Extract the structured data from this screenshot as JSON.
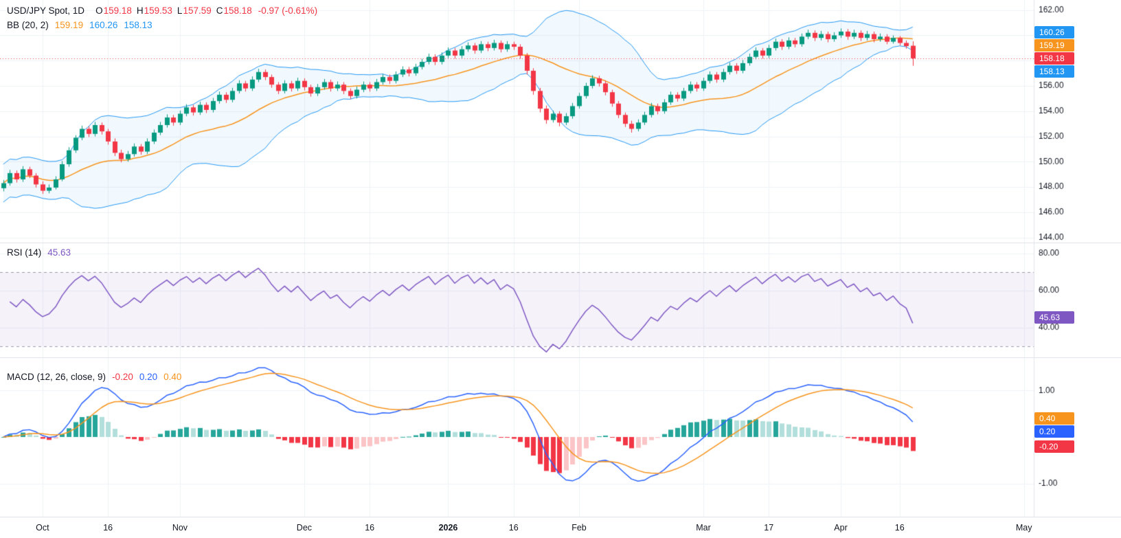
{
  "chart_data": {
    "type": "candlestick",
    "title": "USD/JPY Spot, 1D",
    "slots": 158,
    "x_labels": [
      {
        "text": "Oct",
        "slot": 6
      },
      {
        "text": "16",
        "slot": 16
      },
      {
        "text": "Nov",
        "slot": 27
      },
      {
        "text": "Dec",
        "slot": 46
      },
      {
        "text": "16",
        "slot": 56
      },
      {
        "text": "2026",
        "slot": 68,
        "bold": true
      },
      {
        "text": "16",
        "slot": 78
      },
      {
        "text": "Feb",
        "slot": 88
      },
      {
        "text": "Mar",
        "slot": 107
      },
      {
        "text": "17",
        "slot": 117
      },
      {
        "text": "Apr",
        "slot": 128
      },
      {
        "text": "16",
        "slot": 137
      },
      {
        "text": "May",
        "slot": 156
      }
    ],
    "colors": {
      "up": "#089981",
      "down": "#F23645",
      "bb": "#2196F3",
      "bb_fill": "rgba(33,150,243,0.06)",
      "basis": "#F7941D",
      "rsi": "#7E57C2",
      "rsi_fill": "rgba(126,87,194,0.08)",
      "rsi_dash": "#9B9EA8",
      "macd": "#2962FF",
      "signal": "#F7941D",
      "hist_up": "#26A69A",
      "hist_up_light": "#B2DFDB",
      "hist_down": "#F23645",
      "hist_down_light": "#FBC4C6",
      "grid": "#EEF2F6",
      "axis_text": "#131722",
      "separator": "#E0E3EB"
    },
    "panels": [
      {
        "name": "price",
        "type": "candlestick",
        "legend": {
          "title": "USD/JPY Spot, 1D",
          "ohlc": [
            {
              "k": "O",
              "v": "159.18"
            },
            {
              "k": "H",
              "v": "159.53"
            },
            {
              "k": "L",
              "v": "157.59"
            },
            {
              "k": "C",
              "v": "158.18"
            }
          ],
          "change": "-0.97 (-0.61%)",
          "bb_label": "BB (20, 2)",
          "bb": [
            "159.19",
            "160.26",
            "158.13"
          ]
        },
        "indicator": {
          "name": "Bollinger Bands",
          "period": 20,
          "stddev": 2
        },
        "ylim": [
          143.6,
          162.8
        ],
        "yticks": [
          162,
          160,
          158,
          156,
          154,
          152,
          150,
          148,
          146,
          144
        ],
        "last_price": 158.18,
        "axis_badges": [
          {
            "text": "160.26",
            "value": 160.26,
            "color": "#2196F3"
          },
          {
            "text": "159.19",
            "value": 159.19,
            "color": "#F7941D"
          },
          {
            "text": "158.18",
            "value": 158.18,
            "color": "#F23645"
          },
          {
            "text": "158.13",
            "value": 158.13,
            "color": "#2196F3"
          }
        ],
        "ohlc": [
          [
            147.9,
            148.55,
            147.65,
            148.3
          ],
          [
            148.3,
            149.35,
            148.1,
            149.1
          ],
          [
            149.1,
            149.3,
            148.35,
            148.6
          ],
          [
            148.6,
            149.65,
            148.4,
            149.4
          ],
          [
            149.4,
            149.6,
            148.7,
            148.9
          ],
          [
            148.9,
            149.1,
            147.95,
            148.2
          ],
          [
            148.2,
            148.45,
            147.45,
            147.7
          ],
          [
            147.7,
            148.2,
            147.5,
            147.95
          ],
          [
            147.95,
            148.85,
            147.8,
            148.6
          ],
          [
            148.6,
            150.05,
            148.45,
            149.8
          ],
          [
            149.8,
            151.15,
            149.6,
            150.9
          ],
          [
            150.9,
            152.1,
            150.7,
            151.9
          ],
          [
            151.9,
            152.85,
            151.7,
            152.6
          ],
          [
            152.6,
            152.8,
            151.95,
            152.2
          ],
          [
            152.2,
            153.15,
            152.0,
            152.9
          ],
          [
            152.9,
            153.1,
            152.15,
            152.4
          ],
          [
            152.4,
            152.6,
            151.35,
            151.6
          ],
          [
            151.6,
            151.85,
            150.45,
            150.7
          ],
          [
            150.7,
            150.95,
            149.95,
            150.2
          ],
          [
            150.2,
            150.85,
            150.0,
            150.6
          ],
          [
            150.6,
            151.45,
            150.4,
            151.2
          ],
          [
            151.2,
            151.4,
            150.55,
            150.8
          ],
          [
            150.8,
            151.85,
            150.6,
            151.6
          ],
          [
            151.6,
            152.55,
            151.4,
            152.3
          ],
          [
            152.3,
            153.15,
            152.1,
            152.9
          ],
          [
            152.9,
            153.75,
            152.7,
            153.5
          ],
          [
            153.5,
            153.7,
            152.85,
            153.1
          ],
          [
            153.1,
            154.05,
            152.9,
            153.8
          ],
          [
            153.8,
            154.55,
            153.6,
            154.3
          ],
          [
            154.3,
            154.5,
            153.65,
            153.9
          ],
          [
            153.9,
            154.75,
            153.7,
            154.5
          ],
          [
            154.5,
            154.7,
            153.85,
            154.1
          ],
          [
            154.1,
            155.05,
            153.9,
            154.8
          ],
          [
            154.8,
            155.55,
            154.6,
            155.3
          ],
          [
            155.3,
            155.5,
            154.65,
            154.9
          ],
          [
            154.9,
            155.85,
            154.7,
            155.6
          ],
          [
            155.6,
            156.45,
            155.4,
            156.2
          ],
          [
            156.2,
            156.4,
            155.55,
            155.8
          ],
          [
            155.8,
            156.75,
            155.6,
            156.5
          ],
          [
            156.5,
            157.35,
            156.3,
            157.1
          ],
          [
            157.1,
            157.3,
            156.45,
            156.7
          ],
          [
            156.7,
            156.9,
            155.85,
            156.1
          ],
          [
            156.1,
            156.3,
            155.35,
            155.6
          ],
          [
            155.6,
            156.45,
            155.4,
            156.2
          ],
          [
            156.2,
            156.4,
            155.55,
            155.8
          ],
          [
            155.8,
            156.65,
            155.6,
            156.4
          ],
          [
            156.4,
            156.6,
            155.65,
            155.9
          ],
          [
            155.9,
            156.1,
            155.15,
            155.4
          ],
          [
            155.4,
            156.15,
            155.2,
            155.9
          ],
          [
            155.9,
            156.55,
            155.7,
            156.3
          ],
          [
            156.3,
            156.5,
            155.55,
            155.8
          ],
          [
            155.8,
            156.35,
            155.6,
            156.1
          ],
          [
            156.1,
            156.3,
            155.35,
            155.6
          ],
          [
            155.6,
            155.8,
            154.95,
            155.2
          ],
          [
            155.2,
            155.95,
            155.0,
            155.7
          ],
          [
            155.7,
            156.35,
            155.5,
            156.1
          ],
          [
            156.1,
            156.3,
            155.55,
            155.8
          ],
          [
            155.8,
            156.55,
            155.6,
            156.3
          ],
          [
            156.3,
            156.95,
            156.1,
            156.7
          ],
          [
            156.7,
            156.9,
            156.15,
            156.4
          ],
          [
            156.4,
            157.15,
            156.2,
            156.9
          ],
          [
            156.9,
            157.55,
            156.7,
            157.3
          ],
          [
            157.3,
            157.5,
            156.75,
            157.0
          ],
          [
            157.0,
            157.75,
            156.8,
            157.5
          ],
          [
            157.5,
            158.15,
            157.3,
            157.9
          ],
          [
            157.9,
            158.55,
            157.7,
            158.3
          ],
          [
            158.3,
            158.5,
            157.65,
            157.9
          ],
          [
            157.9,
            158.65,
            157.7,
            158.4
          ],
          [
            158.4,
            159.05,
            158.2,
            158.8
          ],
          [
            158.8,
            159.0,
            158.15,
            158.4
          ],
          [
            158.4,
            159.15,
            158.2,
            158.9
          ],
          [
            158.9,
            159.45,
            158.7,
            159.2
          ],
          [
            159.2,
            159.4,
            158.55,
            158.8
          ],
          [
            158.8,
            159.55,
            158.6,
            159.3
          ],
          [
            159.3,
            159.5,
            158.75,
            159.0
          ],
          [
            159.0,
            159.65,
            158.8,
            159.4
          ],
          [
            159.4,
            159.6,
            158.65,
            158.9
          ],
          [
            158.9,
            159.55,
            158.7,
            159.3
          ],
          [
            159.3,
            159.5,
            158.85,
            159.1
          ],
          [
            159.1,
            159.3,
            158.15,
            158.4
          ],
          [
            158.4,
            158.6,
            156.9,
            157.2
          ],
          [
            157.2,
            157.4,
            155.3,
            155.6
          ],
          [
            155.6,
            155.85,
            153.9,
            154.2
          ],
          [
            154.2,
            154.45,
            153.0,
            153.3
          ],
          [
            153.3,
            154.05,
            153.1,
            153.8
          ],
          [
            153.8,
            154.0,
            152.8,
            153.1
          ],
          [
            153.1,
            153.85,
            152.9,
            153.6
          ],
          [
            153.6,
            154.65,
            153.4,
            154.4
          ],
          [
            154.4,
            155.45,
            154.2,
            155.2
          ],
          [
            155.2,
            156.25,
            155.0,
            156.0
          ],
          [
            156.0,
            156.85,
            155.8,
            156.6
          ],
          [
            156.6,
            156.8,
            155.95,
            156.2
          ],
          [
            156.2,
            156.4,
            155.25,
            155.5
          ],
          [
            155.5,
            155.7,
            154.35,
            154.6
          ],
          [
            154.6,
            154.8,
            153.45,
            153.7
          ],
          [
            153.7,
            153.9,
            152.75,
            153.0
          ],
          [
            153.0,
            153.25,
            152.3,
            152.6
          ],
          [
            152.6,
            153.35,
            152.4,
            153.1
          ],
          [
            153.1,
            153.95,
            152.9,
            153.7
          ],
          [
            153.7,
            154.65,
            153.5,
            154.4
          ],
          [
            154.4,
            154.6,
            153.75,
            154.0
          ],
          [
            154.0,
            154.95,
            153.8,
            154.7
          ],
          [
            154.7,
            155.55,
            154.5,
            155.3
          ],
          [
            155.3,
            155.5,
            154.75,
            155.0
          ],
          [
            155.0,
            155.85,
            154.8,
            155.6
          ],
          [
            155.6,
            156.35,
            155.4,
            156.1
          ],
          [
            156.1,
            156.3,
            155.55,
            155.8
          ],
          [
            155.8,
            156.65,
            155.6,
            156.4
          ],
          [
            156.4,
            157.15,
            156.2,
            156.9
          ],
          [
            156.9,
            157.1,
            156.25,
            156.5
          ],
          [
            156.5,
            157.35,
            156.3,
            157.1
          ],
          [
            157.1,
            157.85,
            156.9,
            157.6
          ],
          [
            157.6,
            157.8,
            156.95,
            157.2
          ],
          [
            157.2,
            158.05,
            157.0,
            157.8
          ],
          [
            157.8,
            158.55,
            157.6,
            158.3
          ],
          [
            158.3,
            159.05,
            158.1,
            158.8
          ],
          [
            158.8,
            159.0,
            158.15,
            158.4
          ],
          [
            158.4,
            159.25,
            158.2,
            159.0
          ],
          [
            159.0,
            159.75,
            158.8,
            159.5
          ],
          [
            159.5,
            159.7,
            158.85,
            159.1
          ],
          [
            159.1,
            159.85,
            158.9,
            159.6
          ],
          [
            159.6,
            159.8,
            159.05,
            159.3
          ],
          [
            159.3,
            160.15,
            159.1,
            159.9
          ],
          [
            159.9,
            160.45,
            159.7,
            160.2
          ],
          [
            160.2,
            160.4,
            159.55,
            159.8
          ],
          [
            159.8,
            160.35,
            159.6,
            160.1
          ],
          [
            160.1,
            160.3,
            159.45,
            159.7
          ],
          [
            159.7,
            160.25,
            159.5,
            160.0
          ],
          [
            160.0,
            160.55,
            159.8,
            160.3
          ],
          [
            160.3,
            160.5,
            159.65,
            159.9
          ],
          [
            159.9,
            160.45,
            159.7,
            160.2
          ],
          [
            160.2,
            160.4,
            159.55,
            159.8
          ],
          [
            159.8,
            160.35,
            159.6,
            160.1
          ],
          [
            160.1,
            160.3,
            159.45,
            159.7
          ],
          [
            159.7,
            160.15,
            159.5,
            159.9
          ],
          [
            159.9,
            160.1,
            159.3,
            159.5
          ],
          [
            159.5,
            160.0,
            159.35,
            159.8
          ],
          [
            159.8,
            159.95,
            159.2,
            159.4
          ],
          [
            159.4,
            159.6,
            158.95,
            159.15
          ],
          [
            159.18,
            159.53,
            157.59,
            158.18
          ]
        ]
      },
      {
        "name": "rsi",
        "type": "line",
        "legend": {
          "label": "RSI (14)",
          "value": "45.63"
        },
        "period": 14,
        "ylim": [
          24,
          86
        ],
        "yticks": [
          80,
          60,
          40
        ],
        "band": [
          30,
          70
        ],
        "badge": {
          "text": "45.63",
          "value": 45.63,
          "color": "#7E57C2"
        }
      },
      {
        "name": "macd",
        "type": "macd",
        "legend": {
          "label": "MACD (12, 26, close, 9)",
          "hist": "-0.20",
          "macd": "0.20",
          "signal": "0.40"
        },
        "params": {
          "fast": 12,
          "slow": 26,
          "source": "close",
          "signal": 9
        },
        "yticks": [
          1,
          -1
        ],
        "axis_badges": [
          {
            "text": "0.40",
            "value": 0.4,
            "color": "#F7941D"
          },
          {
            "text": "0.20",
            "value": 0.2,
            "color": "#2962FF"
          },
          {
            "text": "-0.20",
            "value": -0.2,
            "color": "#F23645"
          }
        ]
      }
    ]
  }
}
